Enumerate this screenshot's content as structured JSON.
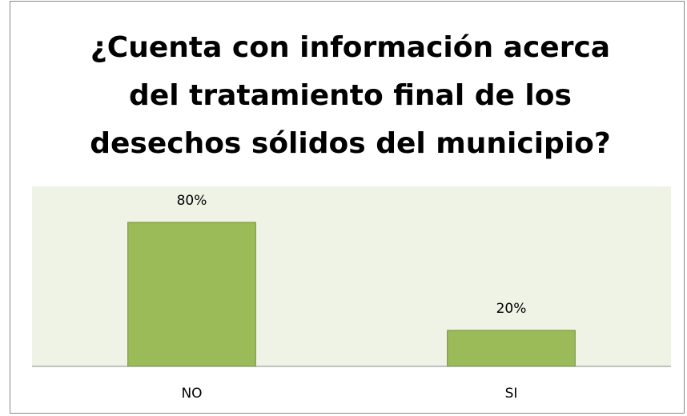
{
  "chart_data": {
    "type": "bar",
    "title": "¿Cuenta con información acerca del tratamiento final de los desechos sólidos del municipio?",
    "categories": [
      "NO",
      "SI"
    ],
    "values": [
      80,
      20
    ],
    "value_labels": [
      "80%",
      "20%"
    ],
    "color": "#9bbb59",
    "ylim": [
      0,
      100
    ]
  }
}
